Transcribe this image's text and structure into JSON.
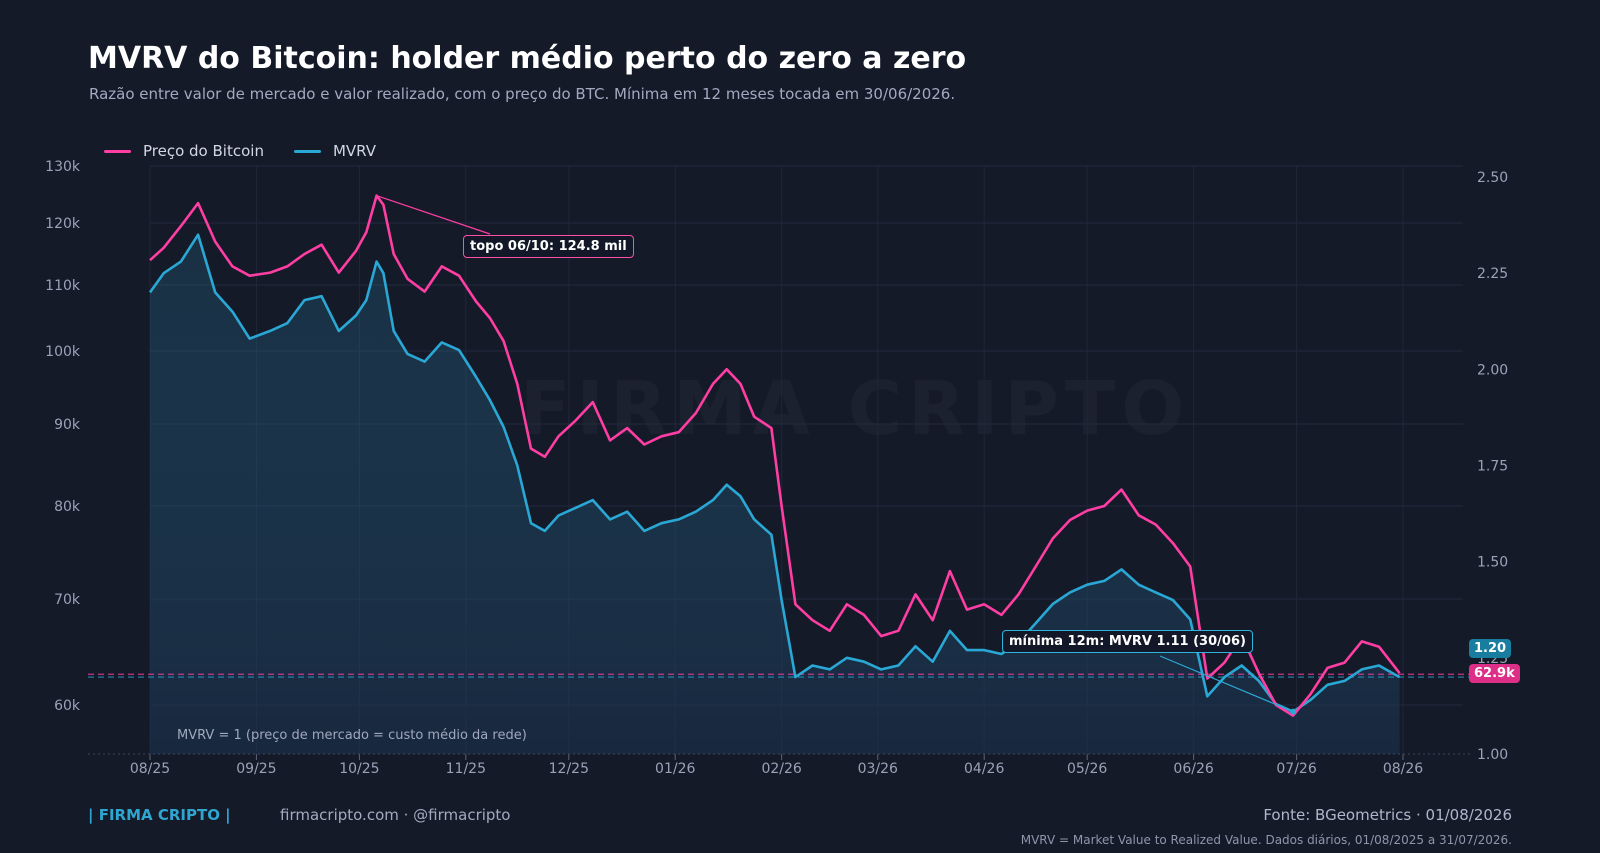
{
  "header": {
    "title": "MVRV do Bitcoin: holder médio perto do zero a zero",
    "subtitle": "Razão entre valor de mercado e valor realizado, com o preço do BTC. Mínima em 12 meses tocada em 30/06/2026."
  },
  "watermark": "FIRMA CRIPTO",
  "legend": [
    {
      "label": "Preço do Bitcoin",
      "color": "#ff3ea4"
    },
    {
      "label": "MVRV",
      "color": "#2aa8d5"
    }
  ],
  "annotations": {
    "top": "topo 06/10: 124.8 mil",
    "min": "mínima 12m: MVRV 1.11 (30/06)"
  },
  "tags": {
    "mvrv": "1.20",
    "price": "62.9k"
  },
  "reference_line": {
    "label": "MVRV = 1  (preço de mercado = custo médio da rede)"
  },
  "footer": {
    "brand": "| FIRMA CRIPTO |",
    "site": "firmacripto.com  ·  @firmacripto",
    "source": "Fonte: BGeometrics  ·  01/08/2026",
    "note": "MVRV = Market Value to Realized Value. Dados diários, 01/08/2025 a 31/07/2026."
  },
  "chart_data": {
    "type": "line",
    "title": "MVRV do Bitcoin: holder médio perto do zero a zero",
    "xlabel": "",
    "ylabel": "",
    "x_ticks": [
      "08/25",
      "09/25",
      "10/25",
      "11/25",
      "12/25",
      "01/26",
      "02/26",
      "03/26",
      "04/26",
      "05/26",
      "06/26",
      "07/26",
      "08/26"
    ],
    "y_left_ticks": [
      "60k",
      "70k",
      "80k",
      "90k",
      "100k",
      "110k",
      "120k",
      "130k"
    ],
    "y_left_tick_values": [
      60000,
      70000,
      80000,
      90000,
      100000,
      110000,
      120000,
      130000
    ],
    "y_right_ticks": [
      "1.00",
      "1.25",
      "1.50",
      "1.75",
      "2.00",
      "2.25",
      "2.50"
    ],
    "y_right_tick_values": [
      1.0,
      1.25,
      1.5,
      1.75,
      2.0,
      2.25,
      2.5
    ],
    "ylim_left": [
      56000,
      130000
    ],
    "ylim_right": [
      1.0,
      2.5
    ],
    "x_dates": [
      "2025-08-01",
      "2025-08-05",
      "2025-08-10",
      "2025-08-15",
      "2025-08-20",
      "2025-08-25",
      "2025-08-30",
      "2025-09-05",
      "2025-09-10",
      "2025-09-15",
      "2025-09-20",
      "2025-09-25",
      "2025-09-30",
      "2025-10-03",
      "2025-10-06",
      "2025-10-08",
      "2025-10-11",
      "2025-10-15",
      "2025-10-20",
      "2025-10-25",
      "2025-10-30",
      "2025-11-04",
      "2025-11-08",
      "2025-11-12",
      "2025-11-16",
      "2025-11-20",
      "2025-11-24",
      "2025-11-28",
      "2025-12-03",
      "2025-12-08",
      "2025-12-13",
      "2025-12-18",
      "2025-12-23",
      "2025-12-28",
      "2026-01-02",
      "2026-01-07",
      "2026-01-12",
      "2026-01-16",
      "2026-01-20",
      "2026-01-24",
      "2026-01-29",
      "2026-02-01",
      "2026-02-05",
      "2026-02-10",
      "2026-02-15",
      "2026-02-20",
      "2026-02-25",
      "2026-03-02",
      "2026-03-07",
      "2026-03-12",
      "2026-03-17",
      "2026-03-22",
      "2026-03-27",
      "2026-04-01",
      "2026-04-06",
      "2026-04-11",
      "2026-04-16",
      "2026-04-21",
      "2026-04-26",
      "2026-05-01",
      "2026-05-06",
      "2026-05-11",
      "2026-05-16",
      "2026-05-21",
      "2026-05-26",
      "2026-05-31",
      "2026-06-05",
      "2026-06-10",
      "2026-06-15",
      "2026-06-20",
      "2026-06-25",
      "2026-06-30",
      "2026-07-05",
      "2026-07-10",
      "2026-07-15",
      "2026-07-20",
      "2026-07-25",
      "2026-07-31"
    ],
    "series": [
      {
        "name": "Preço do Bitcoin",
        "axis": "left",
        "color": "#ff3ea4",
        "values": [
          114000,
          116000,
          119500,
          123500,
          117000,
          113000,
          111500,
          112000,
          113000,
          115000,
          116500,
          112000,
          115500,
          118500,
          124800,
          123200,
          115000,
          111000,
          109000,
          113000,
          111500,
          107500,
          105000,
          101500,
          95500,
          87000,
          86000,
          88500,
          90500,
          93000,
          88000,
          89500,
          87500,
          88500,
          89000,
          91500,
          95500,
          97500,
          95500,
          91000,
          89500,
          80000,
          69500,
          68000,
          67000,
          69500,
          68500,
          66500,
          67000,
          70500,
          68000,
          73000,
          69000,
          69500,
          68500,
          70500,
          73500,
          76500,
          78500,
          79500,
          80000,
          82000,
          79000,
          78000,
          76000,
          73500,
          62500,
          64000,
          66500,
          63000,
          60000,
          59000,
          61000,
          63500,
          64000,
          66000,
          65500,
          63000
        ]
      },
      {
        "name": "MVRV",
        "axis": "right",
        "color": "#2aa8d5",
        "values": [
          2.2,
          2.25,
          2.28,
          2.35,
          2.2,
          2.15,
          2.08,
          2.1,
          2.12,
          2.18,
          2.19,
          2.1,
          2.14,
          2.18,
          2.28,
          2.25,
          2.1,
          2.04,
          2.02,
          2.07,
          2.05,
          1.98,
          1.92,
          1.85,
          1.75,
          1.6,
          1.58,
          1.62,
          1.64,
          1.66,
          1.61,
          1.63,
          1.58,
          1.6,
          1.61,
          1.63,
          1.66,
          1.7,
          1.67,
          1.61,
          1.57,
          1.4,
          1.2,
          1.23,
          1.22,
          1.25,
          1.24,
          1.22,
          1.23,
          1.28,
          1.24,
          1.32,
          1.27,
          1.27,
          1.26,
          1.29,
          1.34,
          1.39,
          1.42,
          1.44,
          1.45,
          1.48,
          1.44,
          1.42,
          1.4,
          1.35,
          1.15,
          1.2,
          1.23,
          1.19,
          1.13,
          1.11,
          1.14,
          1.18,
          1.19,
          1.22,
          1.23,
          1.2
        ]
      }
    ],
    "reference_lines": [
      {
        "label": "MVRV = 1  (preço de mercado = custo médio da rede)",
        "axis": "right",
        "value": 1.0
      }
    ],
    "current_values": {
      "MVRV": 1.2,
      "Preço do Bitcoin": 62900
    },
    "grid": true,
    "legend_position": "top-left"
  }
}
